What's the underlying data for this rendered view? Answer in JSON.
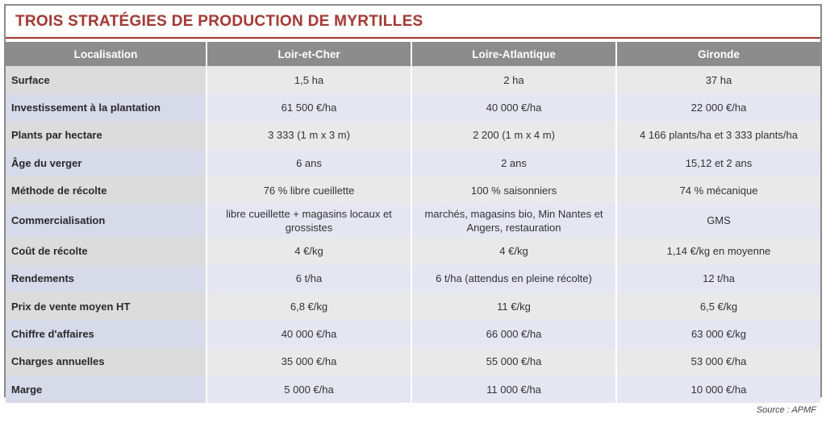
{
  "title": "TROIS STRATÉGIES DE PRODUCTION DE MYRTILLES",
  "headers": [
    "Localisation",
    "Loir-et-Cher",
    "Loire-Atlantique",
    "Gironde"
  ],
  "rows": [
    {
      "label": "Surface",
      "values": [
        "1,5 ha",
        "2 ha",
        "37 ha"
      ]
    },
    {
      "label": "Investissement à la plantation",
      "values": [
        "61 500 €/ha",
        "40 000 €/ha",
        "22 000 €/ha"
      ]
    },
    {
      "label": "Plants par hectare",
      "values": [
        "3 333  (1 m x 3 m)",
        "2 200 (1 m x 4 m)",
        "4 166 plants/ha et 3 333 plants/ha"
      ]
    },
    {
      "label": "Âge du verger",
      "values": [
        "6 ans",
        "2 ans",
        "15,12 et 2 ans"
      ]
    },
    {
      "label": "Méthode de récolte",
      "values": [
        "76 % libre cueillette",
        "100 % saisonniers",
        "74 % mécanique"
      ]
    },
    {
      "label": "Commercialisation",
      "values": [
        "libre cueillette + magasins locaux et grossistes",
        "marchés, magasins bio, Min Nantes et Angers, restauration",
        "GMS"
      ]
    },
    {
      "label": "Coût de récolte",
      "values": [
        "4 €/kg",
        "4 €/kg",
        "1,14 €/kg en moyenne"
      ]
    },
    {
      "label": "Rendements",
      "values": [
        "6 t/ha",
        "6 t/ha (attendus en pleine récolte)",
        "12 t/ha"
      ]
    },
    {
      "label": "Prix de vente moyen HT",
      "values": [
        "6,8 €/kg",
        "11 €/kg",
        "6,5 €/kg"
      ]
    },
    {
      "label": "Chiffre d'affaires",
      "values": [
        "40 000 €/ha",
        "66 000 €/ha",
        "63 000 €/kg"
      ]
    },
    {
      "label": "Charges annuelles",
      "values": [
        "35 000 €/ha",
        "55 000 €/ha",
        "53 000 €/ha"
      ]
    },
    {
      "label": "Marge",
      "values": [
        "5 000 €/ha",
        "11 000 €/ha",
        "10 000 €/ha"
      ]
    }
  ],
  "source": "Source : APMF",
  "colors": {
    "title": "#b5312b",
    "header_bg": "#8c8c8c",
    "row_gray": "#e9e9e9",
    "row_blue": "#e4e7f2"
  }
}
